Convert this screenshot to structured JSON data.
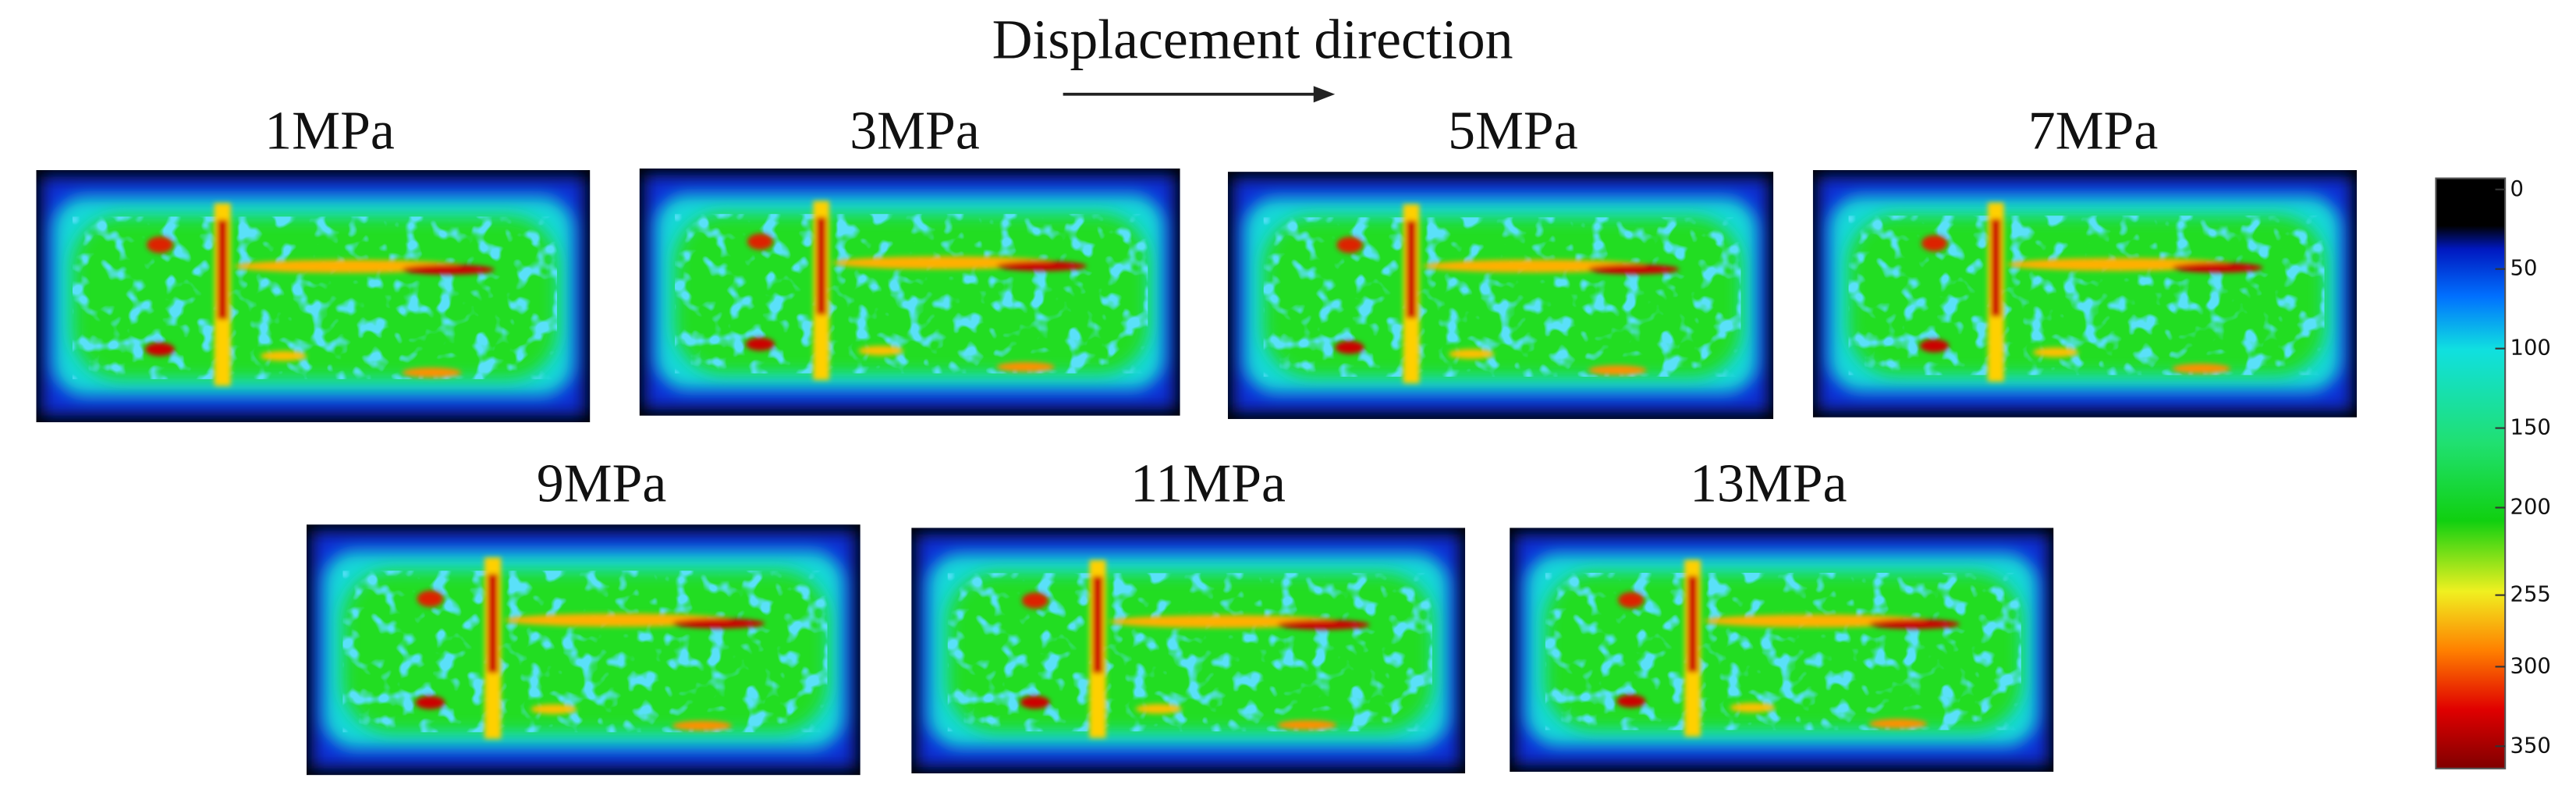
{
  "title": "Displacement direction",
  "panels": [
    {
      "label": "1MPa"
    },
    {
      "label": "3MPa"
    },
    {
      "label": "5MPa"
    },
    {
      "label": "7MPa"
    },
    {
      "label": "9MPa"
    },
    {
      "label": "11MPa"
    },
    {
      "label": "13MPa"
    }
  ],
  "colorbar": {
    "lim": [
      -7,
      364
    ],
    "ticks": [
      0,
      50,
      100,
      150,
      200,
      255,
      300,
      350
    ]
  }
}
